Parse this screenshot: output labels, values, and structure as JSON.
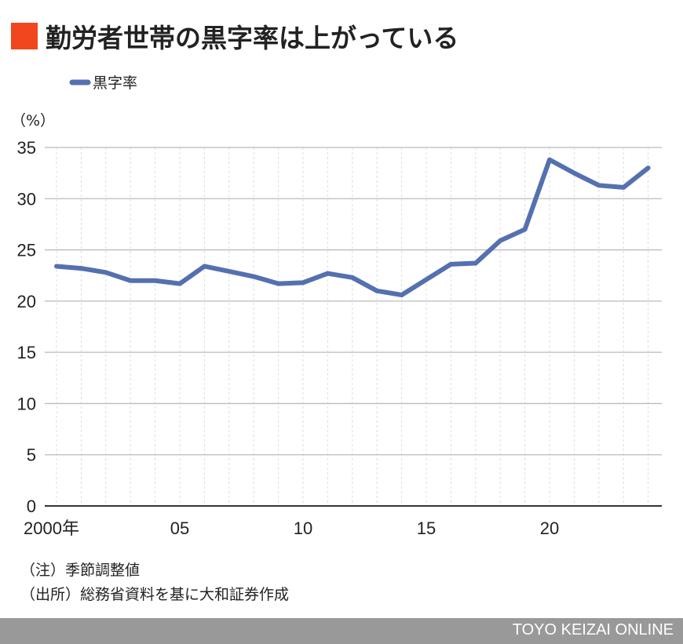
{
  "title": "勤労者世帯の黒字率は上がっている",
  "colors": {
    "accent": "#f2461e",
    "line": "#5470b0",
    "grid": "#bbbbbb",
    "footer": "#999999"
  },
  "chart_data": {
    "type": "line",
    "title": "勤労者世帯の黒字率は上がっている",
    "ylabel": "（%）",
    "xlabel": "",
    "ylim": [
      0,
      35
    ],
    "yticks": [
      0,
      5,
      10,
      15,
      20,
      25,
      30,
      35
    ],
    "xtick_labels": [
      {
        "year": 2000,
        "label": "2000年"
      },
      {
        "year": 2005,
        "label": "05"
      },
      {
        "year": 2010,
        "label": "10"
      },
      {
        "year": 2015,
        "label": "15"
      },
      {
        "year": 2020,
        "label": "20"
      }
    ],
    "legend": "top-left",
    "grid": true,
    "x": [
      2000,
      2001,
      2002,
      2003,
      2004,
      2005,
      2006,
      2007,
      2008,
      2009,
      2010,
      2011,
      2012,
      2013,
      2014,
      2015,
      2016,
      2017,
      2018,
      2019,
      2020,
      2021,
      2022,
      2023,
      2024
    ],
    "series": [
      {
        "name": "黒字率",
        "values": [
          23.4,
          23.2,
          22.8,
          22.0,
          22.0,
          21.7,
          23.4,
          22.9,
          22.4,
          21.7,
          21.8,
          22.7,
          22.3,
          21.0,
          20.6,
          22.1,
          23.6,
          23.7,
          25.9,
          27.0,
          33.8,
          32.5,
          31.3,
          31.1,
          33.0
        ]
      }
    ]
  },
  "notes": [
    "（注）季節調整値",
    "（出所）総務省資料を基に大和証券作成"
  ],
  "footer": "TOYO KEIZAI ONLINE"
}
